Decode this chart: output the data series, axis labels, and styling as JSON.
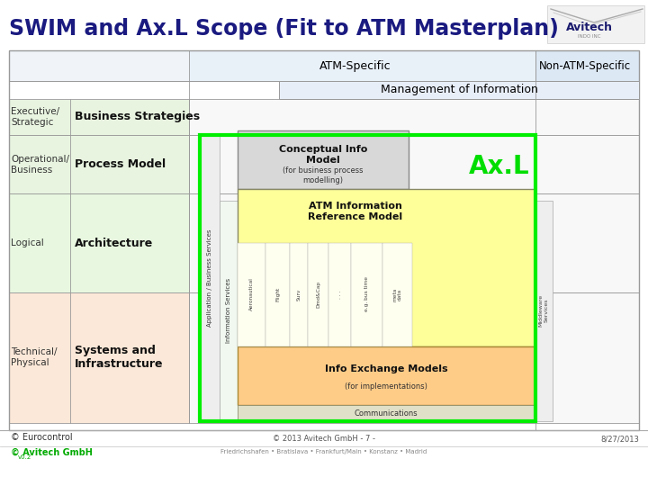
{
  "title": "SWIM and Ax.L Scope (Fit to ATM Masterplan)",
  "bg_color": "#ffffff",
  "atm_specific_label": "ATM-Specific",
  "non_atm_label": "Non-ATM-Specific",
  "mgmt_label": "Management of Information",
  "rows": [
    {
      "left_label": "Executive/\nStrategic",
      "right_label": "Business Strategies"
    },
    {
      "left_label": "Operational/\nBusiness",
      "right_label": "Process Model"
    },
    {
      "left_label": "Logical",
      "right_label": "Architecture"
    },
    {
      "left_label": "Technical/\nPhysical",
      "right_label": "Systems and\nInfrastructure"
    }
  ],
  "row_bg_colors": [
    "#e8f4e0",
    "#e8f4e0",
    "#e8f8e0",
    "#fce8d8"
  ],
  "axl_label": "Ax.L",
  "axl_color": "#00dd00",
  "conceptual_title": "Conceptual Info\nModel",
  "conceptual_sub": "(for business process\nmodelling)",
  "conceptual_bg": "#d8d8d8",
  "atm_info_title": "ATM Information\nReference Model",
  "atm_info_bg": "#ffff99",
  "info_exchange_title": "Info Exchange Models",
  "info_exchange_sub": "(for implementations)",
  "info_exchange_bg": "#ffcc88",
  "communications_label": "Communications",
  "app_bus_label": "Application / Business Services",
  "info_svc_label": "Information Services",
  "middleware_label": "Middleware\nServices",
  "sub_cols": [
    "Aeronautical",
    "Flight",
    "Surv",
    "Dmd&Cap",
    ". . .",
    "e.g. bus time",
    "meta\ndata"
  ],
  "footer_left1": "© Eurocontrol",
  "footer_left2": "© Avitech GmbH",
  "footer_left2_color": "#00aa00",
  "footer_sub2": "v0.2",
  "footer_center": "© 2013 Avitech GmbH - 7 -",
  "footer_sub": "Friedrichshafen • Bratislava • Frankfurt/Main • Konstanz • Madrid",
  "footer_right": "8/27/2013",
  "header_atm_bg": "#e8f0f8",
  "header_nonatm_bg": "#dce8f4",
  "mgmt_bg": "#e8eef8"
}
